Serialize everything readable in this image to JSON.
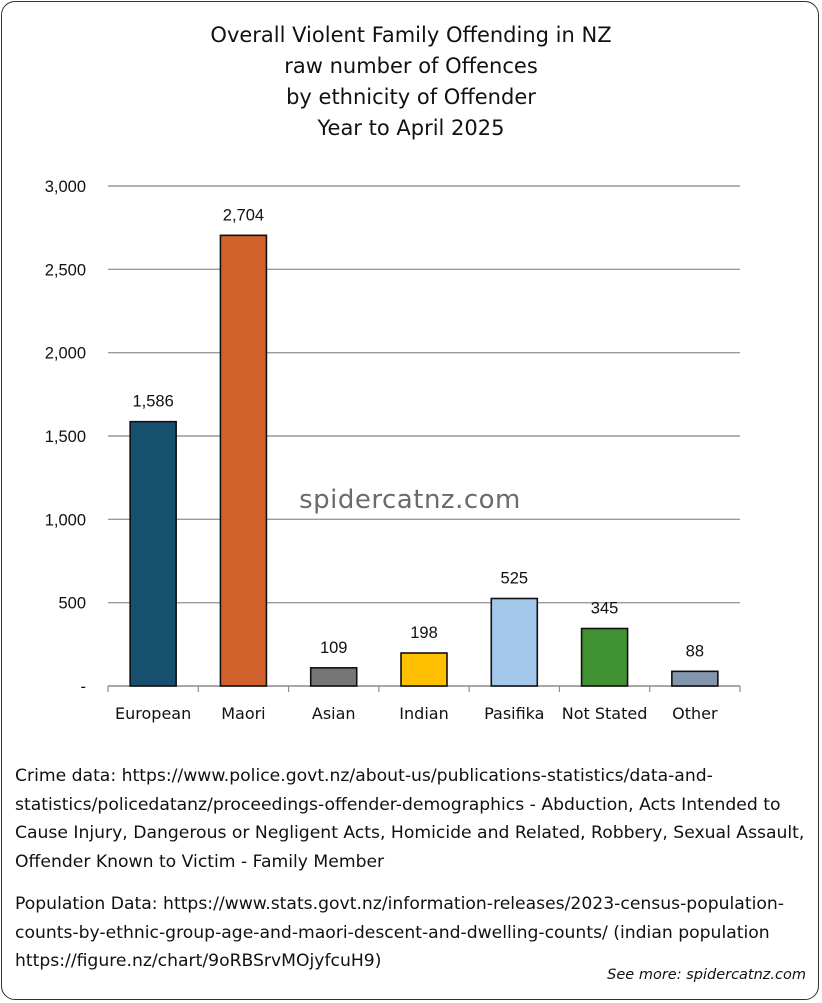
{
  "chart_data": {
    "type": "bar",
    "title_lines": [
      "Overall Violent Family Offending in NZ",
      "raw number of Offences",
      "by ethnicity of Offender",
      "Year to April 2025"
    ],
    "categories": [
      "European",
      "Maori",
      "Asian",
      "Indian",
      "Pasifika",
      "Not Stated",
      "Other"
    ],
    "values": [
      1586,
      2704,
      109,
      198,
      525,
      345,
      88
    ],
    "value_labels": [
      "1,586",
      "2,704",
      "109",
      "198",
      "525",
      "345",
      "88"
    ],
    "colors": [
      "#174f6e",
      "#d1622c",
      "#767676",
      "#fec000",
      "#a4c8eb",
      "#3f9131",
      "#8496ad"
    ],
    "ylim": [
      0,
      3000
    ],
    "yticks": [
      0,
      500,
      1000,
      1500,
      2000,
      2500,
      3000
    ],
    "ytick_labels": [
      "-",
      "500",
      "1,000",
      "1,500",
      "2,000",
      "2,500",
      "3,000"
    ],
    "xlabel": "",
    "ylabel": "",
    "grid": true,
    "legend": "none",
    "watermark": "spidercatnz.com"
  },
  "notes": {
    "crime": "Crime data: https://www.police.govt.nz/about-us/publications-statistics/data-and-statistics/policedatanz/proceedings-offender-demographics - Abduction, Acts Intended to Cause Injury, Dangerous or Negligent Acts, Homicide and Related, Robbery, Sexual Assault, Offender Known to Victim - Family Member",
    "population": "Population Data: https://www.stats.govt.nz/information-releases/2023-census-population-counts-by-ethnic-group-age-and-maori-descent-and-dwelling-counts/ (indian population https://figure.nz/chart/9oRBSrvMOjyfcuH9)"
  },
  "footer": "See more: spidercatnz.com"
}
